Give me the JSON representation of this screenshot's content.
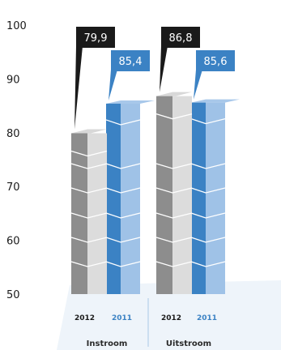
{
  "chart_data": {
    "type": "bar",
    "categories": [
      "Instroom",
      "Uitstroom"
    ],
    "series": [
      {
        "name": "2012",
        "values": [
          79.9,
          86.8
        ],
        "labels": [
          "79,9",
          "86,8"
        ],
        "color": "#b9b9b9",
        "callout_color": "#1a1a1a"
      },
      {
        "name": "2011",
        "values": [
          85.4,
          85.6
        ],
        "labels": [
          "85,4",
          "85,6"
        ],
        "color": "#5b9bd5",
        "callout_color": "#3b82c4"
      }
    ],
    "yticks": [
      "50",
      "60",
      "70",
      "80",
      "90",
      "100"
    ],
    "ylim": [
      50,
      100
    ],
    "grid": false,
    "legend": "none"
  }
}
